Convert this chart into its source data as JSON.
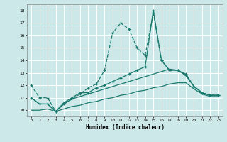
{
  "xlabel": "Humidex (Indice chaleur)",
  "background_color": "#cce8e8",
  "grid_color": "#ffffff",
  "line_color": "#1a7a6e",
  "xlim": [
    -0.5,
    23.5
  ],
  "ylim": [
    9.5,
    18.5
  ],
  "yticks": [
    10,
    11,
    12,
    13,
    14,
    15,
    16,
    17,
    18
  ],
  "xticks": [
    0,
    1,
    2,
    3,
    4,
    5,
    6,
    7,
    8,
    9,
    10,
    11,
    12,
    13,
    14,
    15,
    16,
    17,
    18,
    19,
    20,
    21,
    22,
    23
  ],
  "line1_x": [
    0,
    1,
    2,
    3,
    4,
    5,
    6,
    7,
    8,
    9,
    10,
    11,
    12,
    13,
    14,
    15,
    16,
    17,
    18,
    19,
    20,
    21,
    22,
    23
  ],
  "line1_y": [
    12.0,
    11.0,
    11.0,
    9.9,
    10.5,
    10.9,
    11.3,
    11.8,
    12.1,
    13.2,
    16.2,
    17.0,
    16.5,
    15.0,
    14.4,
    17.8,
    14.0,
    13.2,
    13.2,
    12.8,
    11.9,
    11.4,
    11.2,
    11.2
  ],
  "line2_x": [
    0,
    1,
    2,
    3,
    4,
    5,
    6,
    7,
    8,
    9,
    10,
    11,
    12,
    13,
    14,
    15,
    16,
    17,
    18,
    19,
    20,
    21,
    22,
    23
  ],
  "line2_y": [
    11.0,
    10.5,
    10.5,
    9.9,
    10.6,
    11.0,
    11.4,
    11.4,
    11.8,
    12.0,
    12.3,
    12.6,
    12.9,
    13.2,
    13.5,
    18.0,
    14.0,
    13.2,
    13.2,
    12.9,
    11.9,
    11.4,
    11.2,
    11.2
  ],
  "line3_x": [
    0,
    1,
    2,
    3,
    4,
    5,
    6,
    7,
    8,
    9,
    10,
    11,
    12,
    13,
    14,
    15,
    16,
    17,
    18,
    19,
    20,
    21,
    22,
    23
  ],
  "line3_y": [
    11.0,
    10.5,
    10.5,
    9.9,
    10.5,
    10.9,
    11.1,
    11.3,
    11.5,
    11.7,
    11.9,
    12.1,
    12.3,
    12.5,
    12.7,
    12.9,
    13.1,
    13.3,
    13.2,
    12.8,
    11.9,
    11.4,
    11.2,
    11.2
  ],
  "line4_x": [
    0,
    1,
    2,
    3,
    4,
    5,
    6,
    7,
    8,
    9,
    10,
    11,
    12,
    13,
    14,
    15,
    16,
    17,
    18,
    19,
    20,
    21,
    22,
    23
  ],
  "line4_y": [
    10.0,
    10.0,
    10.1,
    9.9,
    10.1,
    10.3,
    10.4,
    10.6,
    10.7,
    10.9,
    11.0,
    11.2,
    11.3,
    11.5,
    11.6,
    11.8,
    11.9,
    12.1,
    12.2,
    12.2,
    11.7,
    11.3,
    11.1,
    11.1
  ]
}
